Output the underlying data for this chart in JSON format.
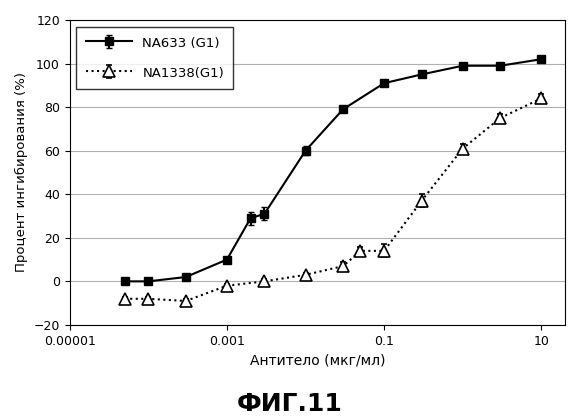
{
  "title": "ФИГ.11",
  "xlabel": "Антитело (мкг/мл)",
  "ylabel": "Процент ингибирования (%)",
  "xlim_log": [
    -5,
    1.5
  ],
  "ylim": [
    -20,
    120
  ],
  "yticks": [
    -20,
    0,
    20,
    40,
    60,
    80,
    100,
    120
  ],
  "xtick_positions": [
    1e-05,
    0.001,
    0.1,
    10
  ],
  "xtick_labels": [
    "0.00001",
    "0.001",
    "0.1",
    "10"
  ],
  "series1_label": "NA633 (G1)",
  "series1_x": [
    5e-05,
    0.0001,
    0.0003,
    0.001,
    0.002,
    0.003,
    0.01,
    0.03,
    0.1,
    0.3,
    1.0,
    3.0,
    10.0
  ],
  "series1_y": [
    0,
    0,
    2,
    10,
    29,
    31,
    60,
    79,
    91,
    95,
    99,
    99,
    102
  ],
  "series1_yerr": [
    0.5,
    0.5,
    0.5,
    1,
    3,
    3,
    2,
    1,
    1,
    1,
    0.5,
    0.5,
    0.5
  ],
  "series2_label": "NA1338(G1)",
  "series2_x": [
    5e-05,
    0.0001,
    0.0003,
    0.001,
    0.003,
    0.01,
    0.03,
    0.05,
    0.1,
    0.3,
    1.0,
    3.0,
    10.0
  ],
  "series2_y": [
    -8,
    -8,
    -9,
    -2,
    0,
    3,
    7,
    14,
    14,
    37,
    61,
    75,
    84
  ],
  "series2_yerr": [
    1,
    1,
    1,
    1,
    1,
    1,
    2,
    2,
    3,
    3,
    2,
    2,
    2
  ],
  "line1_color": "#000000",
  "line2_color": "#000000",
  "bg_color": "#ffffff",
  "grid_color": "#b0b0b0"
}
